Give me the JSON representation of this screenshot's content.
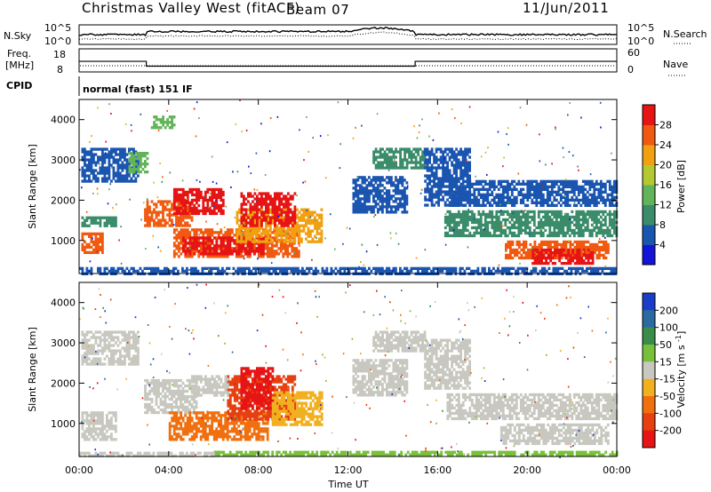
{
  "header": {
    "station": "Christmas Valley West (fitACF)",
    "beam": "Beam 07",
    "date": "11/Jun/2011"
  },
  "panels": {
    "nsky_label": "N.Sky",
    "nsearch_label": "N.Search",
    "freq_label_1": "Freq.",
    "freq_label_2": "[MHz]",
    "nave_label": "Nave",
    "cpid_label": "CPID",
    "cpid_text": "normal (fast) 151 IF",
    "noise_left_ticks": [
      "10^5",
      "10^0"
    ],
    "noise_right_ticks": [
      "10^5",
      "10^0"
    ],
    "freq_ticks": [
      "18",
      "8"
    ],
    "nave_ticks": [
      "60",
      "0"
    ],
    "freq_step": {
      "start_mhz": 12.6,
      "low_mhz": 10.5,
      "step_down_hour": 3.0,
      "step_up_hour": 15.0
    }
  },
  "chart_data": [
    {
      "type": "heatmap",
      "name": "power",
      "ylabel": "Slant Range [km]",
      "xlabel": "",
      "ylim": [
        180,
        4500
      ],
      "xlim": [
        0,
        24
      ],
      "yticks": [
        "1000",
        "2000",
        "3000",
        "4000"
      ],
      "colorbar_label": "Power [dB]",
      "colorbar_ticks": [
        "4",
        "8",
        "12",
        "16",
        "20",
        "24",
        "28"
      ],
      "colorbar_colors": [
        "#1414d8",
        "#1a55b0",
        "#3a8c6a",
        "#62b45a",
        "#b4c832",
        "#f0a010",
        "#f05a10",
        "#e61414"
      ],
      "regions": [
        {
          "t0": 0.1,
          "t1": 1.0,
          "r0": 700,
          "r1": 1200,
          "c": "#f05a10"
        },
        {
          "t0": 0.1,
          "t1": 1.6,
          "r0": 1350,
          "r1": 1600,
          "c": "#3a8c6a"
        },
        {
          "t0": 0.1,
          "t1": 2.6,
          "r0": 2500,
          "r1": 3300,
          "c": "#1a55b0"
        },
        {
          "t0": 2.2,
          "t1": 3.0,
          "r0": 2700,
          "r1": 3200,
          "c": "#62b45a"
        },
        {
          "t0": 2.9,
          "t1": 5.0,
          "r0": 1400,
          "r1": 2000,
          "c": "#f05a10"
        },
        {
          "t0": 4.2,
          "t1": 6.4,
          "r0": 1700,
          "r1": 2300,
          "c": "#e61414"
        },
        {
          "t0": 4.2,
          "t1": 9.8,
          "r0": 600,
          "r1": 1300,
          "c": "#f05a10"
        },
        {
          "t0": 4.6,
          "t1": 8.2,
          "r0": 700,
          "r1": 1100,
          "c": "#e61414"
        },
        {
          "t0": 7.0,
          "t1": 10.8,
          "r0": 1000,
          "r1": 1800,
          "c": "#f0a010"
        },
        {
          "t0": 7.2,
          "t1": 9.6,
          "r0": 1400,
          "r1": 2200,
          "c": "#e61414"
        },
        {
          "t0": 3.2,
          "t1": 4.2,
          "r0": 3800,
          "r1": 4100,
          "c": "#62b45a"
        },
        {
          "t0": 12.2,
          "t1": 14.6,
          "r0": 1700,
          "r1": 2600,
          "c": "#1a55b0"
        },
        {
          "t0": 13.1,
          "t1": 15.4,
          "r0": 2800,
          "r1": 3300,
          "c": "#3a8c6a"
        },
        {
          "t0": 15.4,
          "t1": 17.4,
          "r0": 1900,
          "r1": 3300,
          "c": "#1a55b0"
        },
        {
          "t0": 16.3,
          "t1": 24.0,
          "r0": 1150,
          "r1": 1750,
          "c": "#3a8c6a"
        },
        {
          "t0": 16.5,
          "t1": 24.0,
          "r0": 1900,
          "r1": 2500,
          "c": "#1a55b0"
        },
        {
          "t0": 19.0,
          "t1": 23.6,
          "r0": 550,
          "r1": 1000,
          "c": "#f05a10"
        },
        {
          "t0": 20.2,
          "t1": 22.9,
          "r0": 450,
          "r1": 800,
          "c": "#e61414"
        },
        {
          "t0": 0.0,
          "t1": 24.0,
          "r0": 190,
          "r1": 340,
          "c": "#1a55b0"
        }
      ]
    },
    {
      "type": "heatmap",
      "name": "velocity",
      "ylabel": "Slant Range [km]",
      "xlabel": "Time UT",
      "ylim": [
        180,
        4500
      ],
      "xlim": [
        0,
        24
      ],
      "yticks": [
        "1000",
        "2000",
        "3000",
        "4000"
      ],
      "xticks": [
        "00:00",
        "04:00",
        "08:00",
        "12:00",
        "16:00",
        "20:00",
        "00:00"
      ],
      "colorbar_label": "Velocity [m s^-1]",
      "colorbar_ticks": [
        "200",
        "100",
        "50",
        "15",
        "-15",
        "-50",
        "-100",
        "-200"
      ],
      "colorbar_colors": [
        "#1a3cc8",
        "#2a6aa0",
        "#3a8c4a",
        "#78c03a",
        "#c8c8c0",
        "#f0b020",
        "#f07010",
        "#e64010",
        "#e61414"
      ],
      "regions": [
        {
          "t0": 0.1,
          "t1": 1.6,
          "r0": 600,
          "r1": 1300,
          "c": "#c8c8c0"
        },
        {
          "t0": 0.1,
          "t1": 2.6,
          "r0": 2500,
          "r1": 3300,
          "c": "#c8c8c0"
        },
        {
          "t0": 2.9,
          "t1": 5.2,
          "r0": 1300,
          "r1": 2100,
          "c": "#c8c8c0"
        },
        {
          "t0": 4.0,
          "t1": 8.4,
          "r0": 600,
          "r1": 1300,
          "c": "#f07010"
        },
        {
          "t0": 6.6,
          "t1": 9.6,
          "r0": 1100,
          "r1": 2200,
          "c": "#e64010"
        },
        {
          "t0": 7.2,
          "t1": 8.6,
          "r0": 1400,
          "r1": 2400,
          "c": "#e61414"
        },
        {
          "t0": 8.6,
          "t1": 10.8,
          "r0": 1000,
          "r1": 1800,
          "c": "#f0b020"
        },
        {
          "t0": 5.0,
          "t1": 6.6,
          "r0": 1700,
          "r1": 2200,
          "c": "#c8c8c0"
        },
        {
          "t0": 13.1,
          "t1": 15.4,
          "r0": 2800,
          "r1": 3300,
          "c": "#c8c8c0"
        },
        {
          "t0": 15.4,
          "t1": 17.4,
          "r0": 1900,
          "r1": 3100,
          "c": "#c8c8c0"
        },
        {
          "t0": 16.4,
          "t1": 24.0,
          "r0": 1100,
          "r1": 1750,
          "c": "#c8c8c0"
        },
        {
          "t0": 18.8,
          "t1": 23.6,
          "r0": 500,
          "r1": 1000,
          "c": "#c8c8c0"
        },
        {
          "t0": 12.2,
          "t1": 14.6,
          "r0": 1700,
          "r1": 2600,
          "c": "#c8c8c0"
        },
        {
          "t0": 6.0,
          "t1": 24.0,
          "r0": 190,
          "r1": 320,
          "c": "#78c03a"
        },
        {
          "t0": 0.0,
          "t1": 6.0,
          "r0": 190,
          "r1": 300,
          "c": "#c8c8c0"
        }
      ]
    }
  ]
}
